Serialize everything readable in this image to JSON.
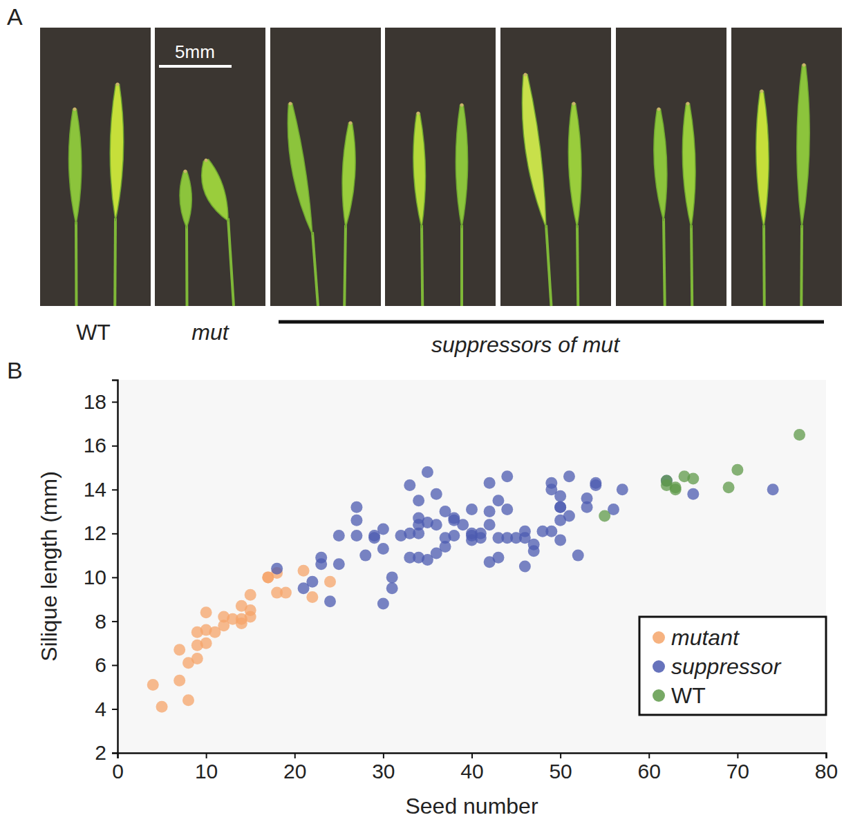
{
  "panel_a": {
    "letter": "A",
    "scale_bar_label": "5mm",
    "labels": [
      "WT",
      "mut",
      "suppressors of mut"
    ]
  },
  "chart_data": {
    "type": "scatter",
    "panel": "B",
    "x_label": "Seed number",
    "y_label": "Silique length (mm)",
    "xlim": [
      0,
      80
    ],
    "xticks": [
      0,
      10,
      20,
      30,
      40,
      50,
      60,
      70,
      80
    ],
    "ylim": [
      2,
      19
    ],
    "yticks": [
      2,
      4,
      6,
      8,
      10,
      12,
      14,
      16,
      18
    ],
    "legend": "lower right",
    "marker": "circle",
    "series": [
      {
        "name": "mutant",
        "color": "#f5a46a",
        "x": [
          4,
          5,
          7,
          7,
          8,
          8,
          9,
          9,
          9,
          10,
          10,
          10,
          11,
          12,
          12,
          13,
          14,
          14,
          14,
          15,
          15,
          15,
          17,
          17,
          18,
          18,
          19,
          21,
          22,
          24
        ],
        "values": [
          5.1,
          4.1,
          6.7,
          5.3,
          6.1,
          4.4,
          7.5,
          6.9,
          6.3,
          8.4,
          7.6,
          7.0,
          7.5,
          8.2,
          7.8,
          8.1,
          8.7,
          8.1,
          7.9,
          9.2,
          8.5,
          8.2,
          10.0,
          10.0,
          10.2,
          9.3,
          9.3,
          10.3,
          9.1,
          9.8
        ]
      },
      {
        "name": "suppressor",
        "color": "#4c5bb0",
        "x": [
          18,
          21,
          22,
          23,
          23,
          24,
          25,
          25,
          27,
          27,
          27,
          28,
          29,
          29,
          30,
          30,
          30,
          31,
          31,
          32,
          33,
          33,
          33,
          34,
          34,
          34,
          34,
          34,
          35,
          35,
          35,
          36,
          36,
          36,
          37,
          37,
          37,
          38,
          38,
          38,
          39,
          40,
          40,
          40,
          40,
          41,
          41,
          42,
          42,
          42,
          42,
          43,
          43,
          43,
          44,
          44,
          44,
          45,
          46,
          46,
          46,
          47,
          47,
          48,
          49,
          49,
          49,
          50,
          50,
          50,
          50,
          50,
          51,
          51,
          52,
          53,
          53,
          54,
          54,
          56,
          57,
          62,
          65,
          74
        ],
        "values": [
          10.4,
          9.5,
          9.8,
          10.9,
          10.6,
          8.9,
          10.6,
          11.9,
          13.2,
          12.6,
          11.9,
          11.0,
          11.9,
          11.8,
          12.2,
          11.3,
          8.8,
          10.0,
          9.5,
          11.9,
          14.2,
          12.0,
          10.9,
          13.5,
          12.7,
          12.4,
          12.0,
          10.9,
          14.8,
          12.5,
          10.8,
          13.8,
          12.4,
          11.1,
          13.0,
          11.8,
          11.4,
          12.7,
          12.6,
          11.9,
          12.4,
          13.1,
          12.0,
          11.7,
          11.9,
          11.8,
          12.0,
          14.3,
          13.0,
          12.4,
          10.7,
          11.8,
          13.5,
          10.9,
          14.6,
          13.1,
          11.8,
          11.8,
          12.1,
          11.8,
          10.5,
          11.2,
          11.5,
          12.1,
          12.1,
          14.3,
          14.0,
          13.7,
          13.2,
          12.6,
          11.7,
          13.2,
          12.8,
          14.6,
          11.0,
          13.6,
          13.2,
          14.3,
          14.2,
          13.1,
          14.0,
          14.4,
          13.8,
          14.0
        ]
      },
      {
        "name": "WT",
        "color": "#5f9a4a",
        "x": [
          55,
          62,
          62,
          63,
          63,
          64,
          65,
          69,
          70,
          77
        ],
        "values": [
          12.8,
          14.4,
          14.2,
          14.0,
          14.1,
          14.6,
          14.5,
          14.1,
          14.9,
          16.5
        ]
      }
    ]
  }
}
